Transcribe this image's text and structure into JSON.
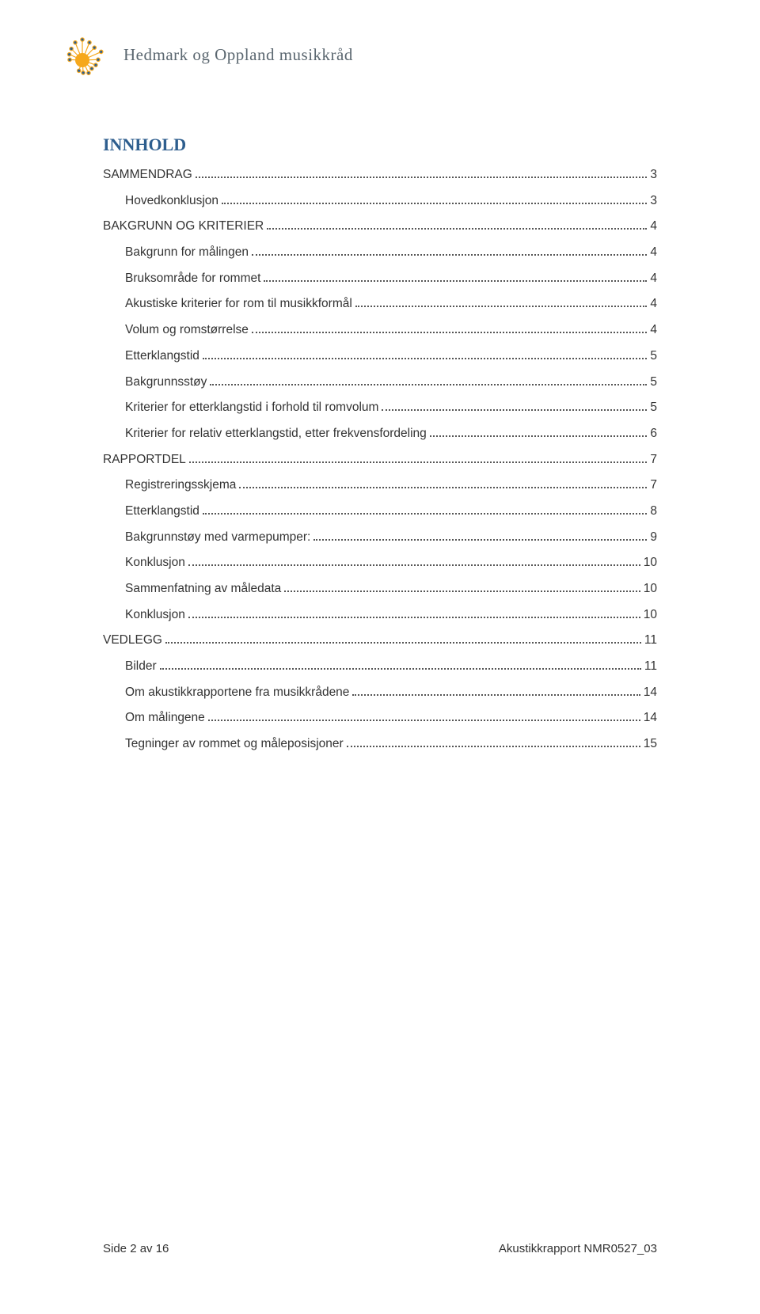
{
  "header": {
    "org_name": "Hedmark og Oppland musikkråd"
  },
  "logo": {
    "center_color": "#f6a81c",
    "ray_color": "#f6a81c",
    "tip_color": "#2e5e8e"
  },
  "toc": {
    "heading": "INNHOLD",
    "heading_color": "#2e5e8e",
    "text_color": "#333333",
    "dot_color": "#555555",
    "font_size": 15.5,
    "entries": [
      {
        "label": "SAMMENDRAG",
        "page": "3",
        "level": 0
      },
      {
        "label": "Hovedkonklusjon",
        "page": "3",
        "level": 1
      },
      {
        "label": "BAKGRUNN OG KRITERIER",
        "page": "4",
        "level": 0
      },
      {
        "label": "Bakgrunn for målingen",
        "page": "4",
        "level": 1
      },
      {
        "label": "Bruksområde for rommet",
        "page": "4",
        "level": 1
      },
      {
        "label": "Akustiske kriterier for rom til musikkformål",
        "page": "4",
        "level": 1
      },
      {
        "label": "Volum og romstørrelse",
        "page": "4",
        "level": 1
      },
      {
        "label": "Etterklangstid",
        "page": "5",
        "level": 1
      },
      {
        "label": "Bakgrunnsstøy",
        "page": "5",
        "level": 1
      },
      {
        "label": "Kriterier for etterklangstid i forhold til romvolum",
        "page": "5",
        "level": 1
      },
      {
        "label": "Kriterier for relativ etterklangstid, etter frekvensfordeling",
        "page": "6",
        "level": 1
      },
      {
        "label": "RAPPORTDEL",
        "page": "7",
        "level": 0
      },
      {
        "label": "Registreringsskjema",
        "page": "7",
        "level": 1
      },
      {
        "label": "Etterklangstid",
        "page": "8",
        "level": 1
      },
      {
        "label": "Bakgrunnstøy med varmepumper:",
        "page": "9",
        "level": 1
      },
      {
        "label": "Konklusjon",
        "page": "10",
        "level": 1
      },
      {
        "label": "Sammenfatning av måledata",
        "page": "10",
        "level": 1
      },
      {
        "label": "Konklusjon",
        "page": "10",
        "level": 1
      },
      {
        "label": "VEDLEGG",
        "page": "11",
        "level": 0
      },
      {
        "label": "Bilder",
        "page": "11",
        "level": 1
      },
      {
        "label": "Om akustikkrapportene fra musikkrådene",
        "page": "14",
        "level": 1
      },
      {
        "label": "Om målingene",
        "page": "14",
        "level": 1
      },
      {
        "label": "Tegninger av rommet og måleposisjoner",
        "page": "15",
        "level": 1
      }
    ]
  },
  "footer": {
    "left": "Side 2 av 16",
    "right": "Akustikkrapport NMR0527_03"
  }
}
